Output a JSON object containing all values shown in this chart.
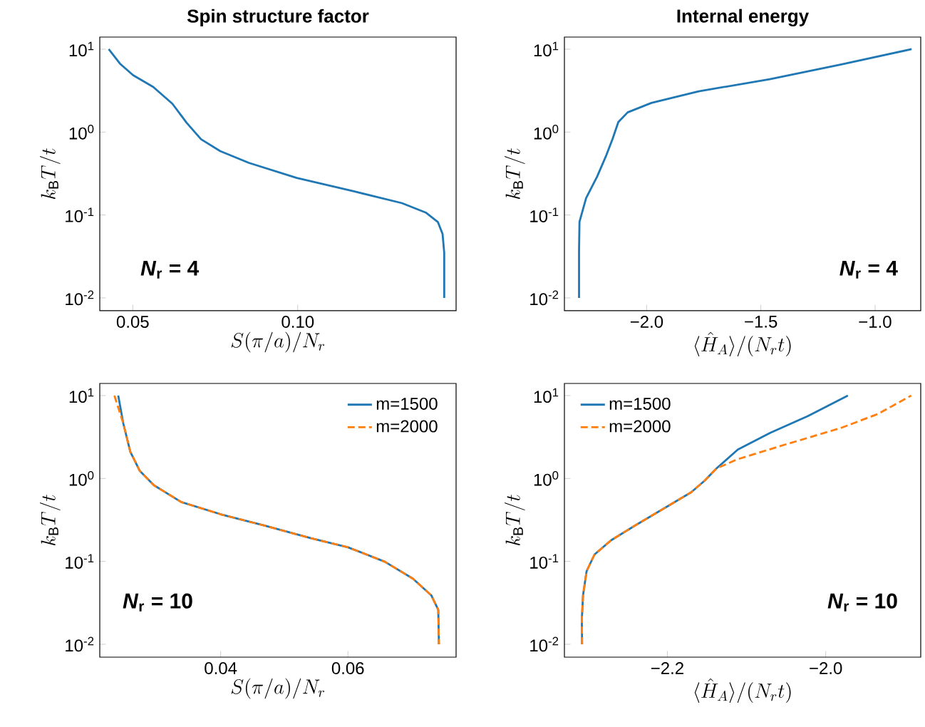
{
  "chart_data": [
    {
      "type": "line",
      "title": "Spin structure factor",
      "xlabel": "S(\\pi/a)/N_r",
      "ylabel": "k_\\mathrm{B}T/t",
      "log": "y",
      "xlim": [
        0.04,
        0.148
      ],
      "ylim": [
        0.007,
        14
      ],
      "xticks": [
        0.05,
        {
          "value": 0.1,
          "label": "0.10"
        }
      ],
      "yticks": [
        {
          "value": 0.01,
          "label": "10$^{-2}$"
        },
        {
          "value": 0.1,
          "label": "10$^{-1}$"
        },
        {
          "value": 1,
          "label": "10$^{0}$"
        },
        {
          "value": 10,
          "label": "10$^{1}$"
        }
      ],
      "annotations": [
        "*N*$_{r}$ = 4"
      ],
      "series": [
        {
          "color": "#1f77b4",
          "x": [
            0.0427,
            0.0461,
            0.0501,
            0.0562,
            0.062,
            0.0663,
            0.0707,
            0.0765,
            0.0852,
            0.0997,
            0.117,
            0.1316,
            0.1388,
            0.1425,
            0.1439,
            0.1444,
            0.1444
          ],
          "values": [
            10,
            6.7,
            4.85,
            3.5,
            2.2,
            1.3,
            0.82,
            0.59,
            0.425,
            0.28,
            0.193,
            0.139,
            0.107,
            0.082,
            0.059,
            0.035,
            0.01
          ]
        }
      ]
    },
    {
      "type": "line",
      "title": "Internal energy",
      "xlabel": "\\langle\\hat{H}_A\\rangle/(N_r t)",
      "ylabel": "k_\\mathrm{B}T/t",
      "log": "y",
      "xlim": [
        -2.36,
        -0.8
      ],
      "ylim": [
        0.007,
        14
      ],
      "xticks": [
        {
          "value": -2.0,
          "label": "−2.0"
        },
        {
          "value": -1.5,
          "label": "−1.5"
        },
        {
          "value": -1.0,
          "label": "−1.0"
        }
      ],
      "yticks": [
        {
          "value": 0.01,
          "label": "10$^{-2}$"
        },
        {
          "value": 0.1,
          "label": "10$^{-1}$"
        },
        {
          "value": 1,
          "label": "10$^{0}$"
        },
        {
          "value": 10,
          "label": "10$^{1}$"
        }
      ],
      "annotations": [
        "*N*$_{r}$ = 4"
      ],
      "series": [
        {
          "color": "#1f77b4",
          "x": [
            -2.296,
            -2.296,
            -2.294,
            -2.265,
            -2.217,
            -2.176,
            -2.149,
            -2.124,
            -2.083,
            -1.979,
            -1.772,
            -1.461,
            -1.151,
            -0.84
          ],
          "values": [
            0.01,
            0.037,
            0.083,
            0.16,
            0.29,
            0.53,
            0.83,
            1.32,
            1.73,
            2.25,
            3.1,
            4.35,
            6.5,
            10
          ]
        }
      ]
    },
    {
      "type": "line",
      "xlabel": "S(\\pi/a)/N_r",
      "ylabel": "k_\\mathrm{B}T/t",
      "log": "y",
      "xlim": [
        0.021,
        0.077
      ],
      "ylim": [
        0.007,
        14
      ],
      "legend": "top right",
      "xticks": [
        0.04,
        0.06
      ],
      "yticks": [
        {
          "value": 0.01,
          "label": "10$^{-2}$"
        },
        {
          "value": 0.1,
          "label": "10$^{-1}$"
        },
        {
          "value": 1,
          "label": "10$^{0}$"
        },
        {
          "value": 10,
          "label": "10$^{1}$"
        }
      ],
      "annotations": [
        "*N*$_{r}$ = 10"
      ],
      "series": [
        {
          "name": "m=1500",
          "color": "#1f77b4",
          "line_style": "solid",
          "x": [
            0.0239,
            0.0247,
            0.0258,
            0.0273,
            0.0295,
            0.0338,
            0.04,
            0.0469,
            0.0542,
            0.06,
            0.0658,
            0.0702,
            0.0731,
            0.0742,
            0.0743
          ],
          "values": [
            10,
            4.6,
            2.1,
            1.23,
            0.83,
            0.52,
            0.37,
            0.27,
            0.19,
            0.148,
            0.099,
            0.062,
            0.039,
            0.026,
            0.01
          ]
        },
        {
          "name": "m=2000",
          "color": "#ff7f0e",
          "line_style": "dashed",
          "x": [
            0.0233,
            0.0247,
            0.0258,
            0.0273,
            0.0295,
            0.0338,
            0.04,
            0.0469,
            0.0542,
            0.06,
            0.0658,
            0.0702,
            0.0731,
            0.0742,
            0.0743
          ],
          "values": [
            10,
            4.6,
            2.1,
            1.23,
            0.83,
            0.52,
            0.37,
            0.27,
            0.19,
            0.148,
            0.099,
            0.062,
            0.039,
            0.026,
            0.01
          ]
        }
      ]
    },
    {
      "type": "line",
      "xlabel": "\\langle\\hat{H}_A\\rangle/(N_r t)",
      "ylabel": "k_\\mathrm{B}T/t",
      "log": "y",
      "xlim": [
        -2.33,
        -1.88
      ],
      "ylim": [
        0.007,
        14
      ],
      "legend": "top left",
      "xticks": [
        {
          "value": -2.2,
          "label": "−2.2"
        },
        {
          "value": -2.0,
          "label": "−2.0"
        }
      ],
      "yticks": [
        {
          "value": 0.01,
          "label": "10$^{-2}$"
        },
        {
          "value": 0.1,
          "label": "10$^{-1}$"
        },
        {
          "value": 1,
          "label": "10$^{0}$"
        },
        {
          "value": 10,
          "label": "10$^{1}$"
        }
      ],
      "annotations": [
        "*N*$_{r}$ = 10"
      ],
      "series": [
        {
          "name": "m=1500",
          "color": "#1f77b4",
          "line_style": "solid",
          "x": [
            -2.3077,
            -2.308,
            -2.3065,
            -2.302,
            -2.292,
            -2.271,
            -2.241,
            -2.2,
            -2.17,
            -2.153,
            -2.138,
            -2.111,
            -2.07,
            -2.0225,
            -1.972
          ],
          "values": [
            0.01,
            0.02,
            0.039,
            0.076,
            0.121,
            0.18,
            0.27,
            0.46,
            0.68,
            0.94,
            1.32,
            2.23,
            3.56,
            5.65,
            10
          ]
        },
        {
          "name": "m=2000",
          "color": "#ff7f0e",
          "line_style": "dashed",
          "x": [
            -2.3077,
            -2.308,
            -2.3065,
            -2.302,
            -2.292,
            -2.271,
            -2.241,
            -2.2,
            -2.17,
            -2.153,
            -2.138,
            -2.111,
            -2.052,
            -1.981,
            -1.934,
            -1.892
          ],
          "values": [
            0.01,
            0.02,
            0.039,
            0.076,
            0.121,
            0.18,
            0.27,
            0.46,
            0.68,
            0.94,
            1.32,
            1.71,
            2.55,
            4.06,
            6.0,
            10
          ]
        }
      ]
    }
  ]
}
